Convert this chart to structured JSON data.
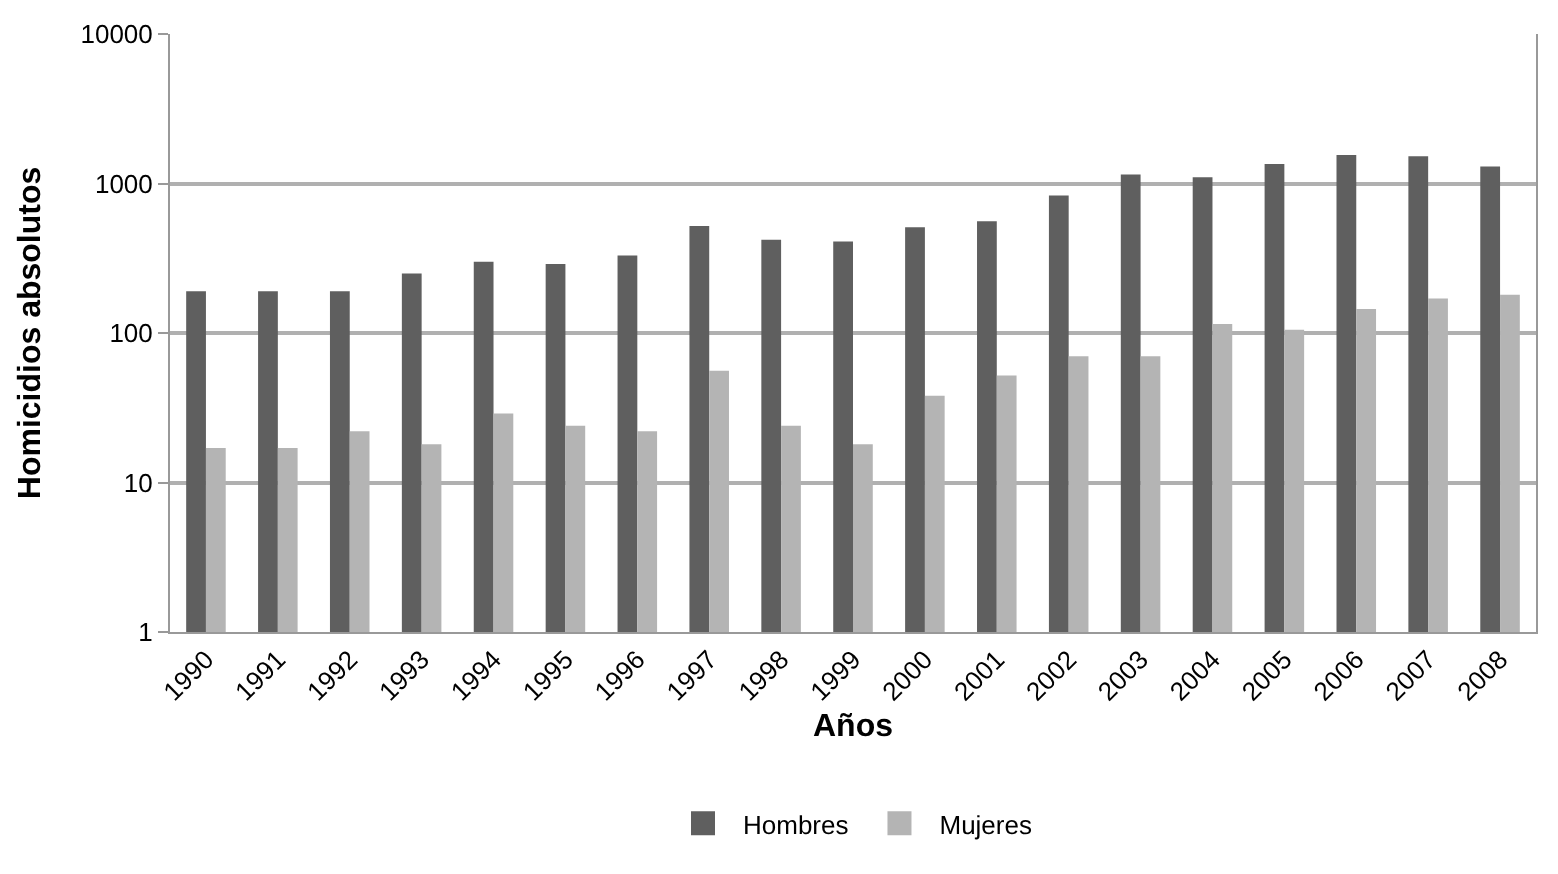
{
  "chart_data": {
    "type": "bar",
    "xlabel": "Años",
    "ylabel": "Homicidios absolutos",
    "categories": [
      "1990",
      "1991",
      "1992",
      "1993",
      "1994",
      "1995",
      "1996",
      "1997",
      "1998",
      "1999",
      "2000",
      "2001",
      "2002",
      "2003",
      "2004",
      "2005",
      "2006",
      "2007",
      "2008"
    ],
    "series": [
      {
        "name": "Hombres",
        "color": "#5f5f5f",
        "values": [
          190,
          190,
          190,
          250,
          300,
          290,
          330,
          520,
          420,
          410,
          510,
          560,
          830,
          1150,
          1100,
          1350,
          1550,
          1520,
          1300
        ]
      },
      {
        "name": "Mujeres",
        "color": "#b4b4b4",
        "values": [
          17,
          17,
          22,
          18,
          29,
          24,
          22,
          56,
          24,
          18,
          38,
          52,
          70,
          70,
          115,
          105,
          145,
          170,
          180
        ]
      }
    ],
    "log": "y",
    "ylim": [
      1,
      10000
    ],
    "yticks": [
      1,
      10,
      100,
      1000,
      10000
    ],
    "grid": "y",
    "legend": "bottom"
  }
}
